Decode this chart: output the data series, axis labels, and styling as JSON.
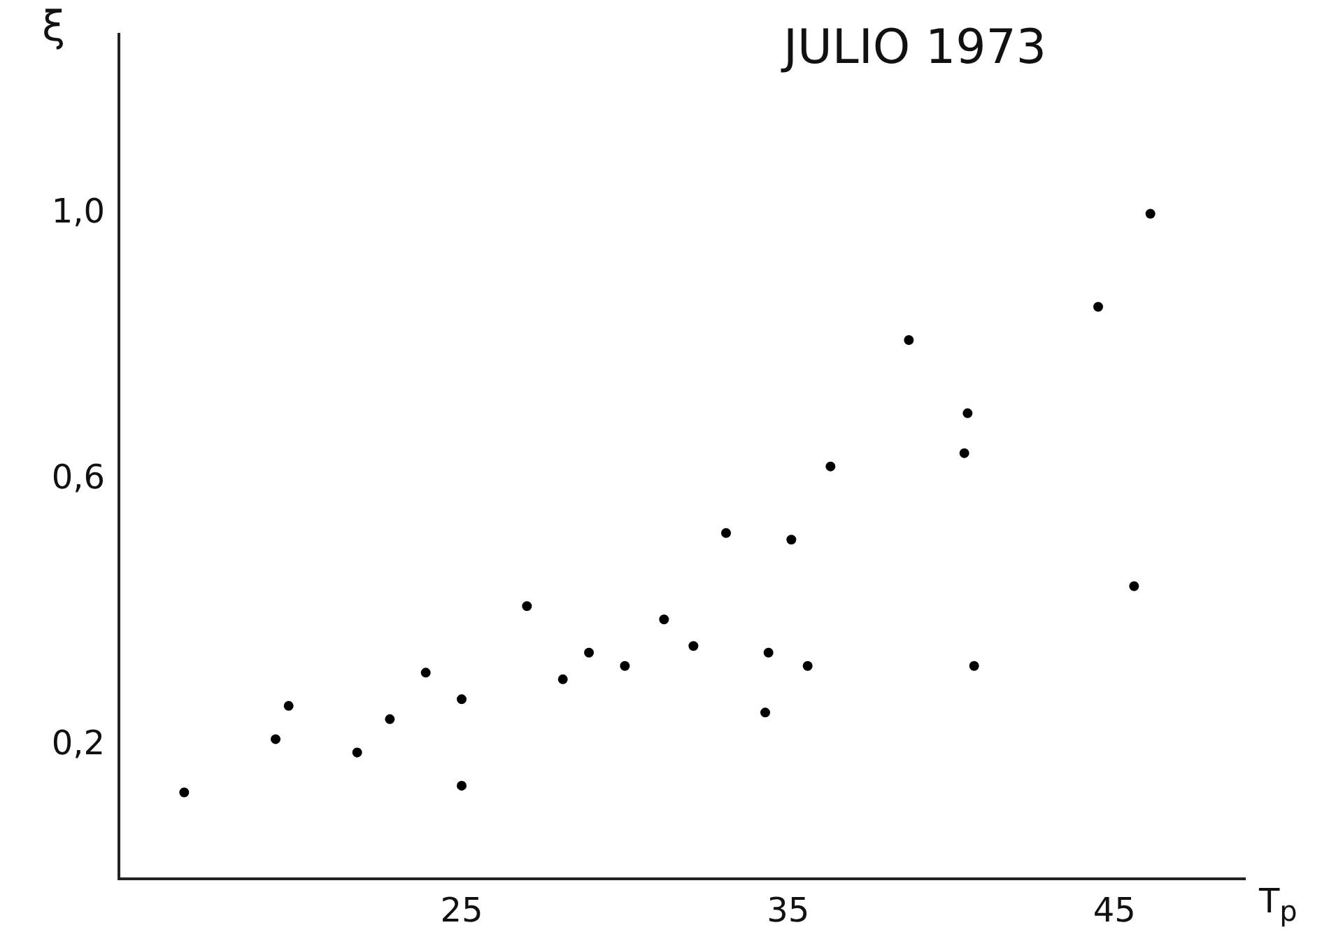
{
  "chart_data": {
    "type": "scatter",
    "title": "JULIO 1973",
    "xlabel": "T$_{p}$",
    "ylabel": "ξ",
    "x": [
      16.5,
      19.3,
      19.7,
      21.8,
      22.8,
      23.9,
      25,
      25,
      27,
      28.1,
      28.9,
      30,
      31.2,
      32.1,
      33.1,
      34.3,
      34.4,
      35.1,
      35.6,
      36.3,
      38.7,
      40.5,
      40.4,
      40.7,
      44.5,
      45.6,
      46.1
    ],
    "values": [
      0.13,
      0.21,
      0.26,
      0.19,
      0.24,
      0.31,
      0.27,
      0.14,
      0.41,
      0.3,
      0.34,
      0.32,
      0.39,
      0.35,
      0.52,
      0.25,
      0.34,
      0.51,
      0.32,
      0.62,
      0.81,
      0.7,
      0.64,
      0.32,
      0.86,
      0.44,
      1.0
    ],
    "color": "#000000",
    "marker": "circle",
    "grid": false,
    "xlim": [
      14.5,
      49
    ],
    "xticks": [
      25,
      35,
      45
    ],
    "ylim": [
      0,
      1.27
    ],
    "yticks": [
      {
        "value": 0.2,
        "label": "0,2"
      },
      {
        "value": 0.6,
        "label": "0,6"
      },
      {
        "value": 1.0,
        "label": "1,0"
      }
    ]
  }
}
